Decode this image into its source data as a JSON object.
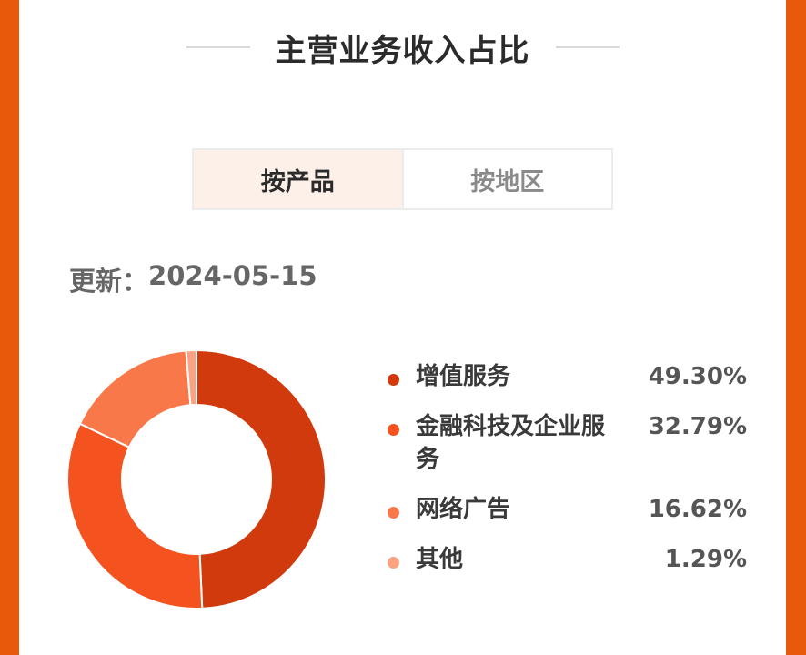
{
  "page": {
    "title": "主营业务收入占比",
    "tabs": [
      {
        "label": "按产品",
        "active": true
      },
      {
        "label": "按地区",
        "active": false
      }
    ],
    "updated_label": "更新：",
    "updated_date": "2024-05-15"
  },
  "colors": {
    "page_border": "#E8590C",
    "active_tab_bg": "#FDF0E8"
  },
  "chart_data": {
    "type": "pie",
    "variant": "donut",
    "series": [
      {
        "name": "增值服务",
        "value": 49.3,
        "label": "49.30%",
        "color": "#D13A0C"
      },
      {
        "name": "金融科技及企业服务",
        "value": 32.79,
        "label": "32.79%",
        "color": "#F4521E"
      },
      {
        "name": "网络广告",
        "value": 16.62,
        "label": "16.62%",
        "color": "#F9784A"
      },
      {
        "name": "其他",
        "value": 1.29,
        "label": "1.29%",
        "color": "#FBA283"
      }
    ]
  }
}
